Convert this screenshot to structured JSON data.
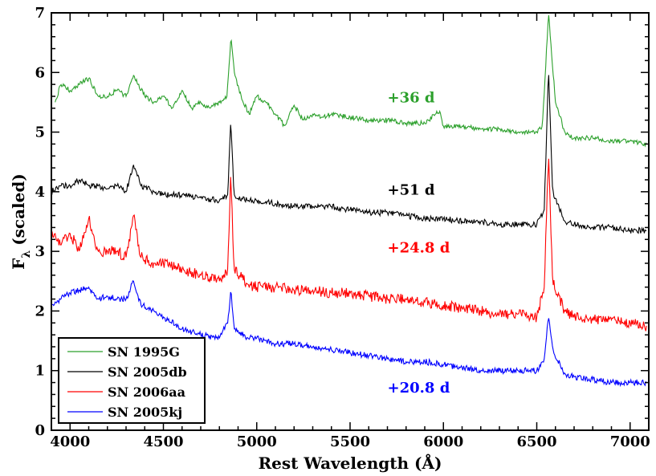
{
  "chart_data": {
    "type": "line",
    "title": "",
    "xlabel": "Rest Wavelength (Å)",
    "ylabel_main": "F",
    "ylabel_sub": "λ",
    "ylabel_suffix": "(scaled)",
    "xlim": [
      3900,
      7100
    ],
    "ylim": [
      0,
      7
    ],
    "xticks": [
      4000,
      4500,
      5000,
      5500,
      6000,
      6500,
      7000
    ],
    "yticks": [
      0,
      1,
      2,
      3,
      4,
      5,
      6,
      7
    ],
    "legend_position": "bottom-left",
    "series": [
      {
        "name": "SN 1995G",
        "color": "#2ca02c",
        "annotation": "+36 d",
        "annotation_x": 5700,
        "annotation_y": 5.5,
        "points": [
          [
            3920,
            5.5
          ],
          [
            3950,
            5.8
          ],
          [
            4000,
            5.7
          ],
          [
            4050,
            5.8
          ],
          [
            4100,
            5.9
          ],
          [
            4150,
            5.6
          ],
          [
            4200,
            5.6
          ],
          [
            4250,
            5.7
          ],
          [
            4300,
            5.6
          ],
          [
            4340,
            5.95
          ],
          [
            4400,
            5.6
          ],
          [
            4450,
            5.5
          ],
          [
            4500,
            5.6
          ],
          [
            4550,
            5.4
          ],
          [
            4600,
            5.7
          ],
          [
            4650,
            5.4
          ],
          [
            4700,
            5.5
          ],
          [
            4750,
            5.4
          ],
          [
            4800,
            5.5
          ],
          [
            4840,
            5.6
          ],
          [
            4862,
            6.6
          ],
          [
            4880,
            6.0
          ],
          [
            4920,
            5.55
          ],
          [
            4960,
            5.3
          ],
          [
            5000,
            5.6
          ],
          [
            5050,
            5.5
          ],
          [
            5100,
            5.3
          ],
          [
            5150,
            5.1
          ],
          [
            5200,
            5.45
          ],
          [
            5250,
            5.2
          ],
          [
            5300,
            5.3
          ],
          [
            5350,
            5.25
          ],
          [
            5400,
            5.3
          ],
          [
            5500,
            5.25
          ],
          [
            5600,
            5.2
          ],
          [
            5700,
            5.2
          ],
          [
            5800,
            5.15
          ],
          [
            5900,
            5.15
          ],
          [
            5980,
            5.35
          ],
          [
            6000,
            5.1
          ],
          [
            6100,
            5.1
          ],
          [
            6200,
            5.05
          ],
          [
            6300,
            5.05
          ],
          [
            6400,
            5.0
          ],
          [
            6500,
            5.0
          ],
          [
            6530,
            5.1
          ],
          [
            6563,
            7.0
          ],
          [
            6600,
            5.5
          ],
          [
            6650,
            5.0
          ],
          [
            6700,
            4.9
          ],
          [
            6800,
            4.9
          ],
          [
            6900,
            4.85
          ],
          [
            7000,
            4.85
          ],
          [
            7090,
            4.8
          ]
        ]
      },
      {
        "name": "SN 2005db",
        "color": "#000000",
        "annotation": "+51 d",
        "annotation_x": 5700,
        "annotation_y": 3.95,
        "points": [
          [
            3900,
            4.0
          ],
          [
            3950,
            4.1
          ],
          [
            4000,
            4.1
          ],
          [
            4050,
            4.2
          ],
          [
            4100,
            4.1
          ],
          [
            4150,
            4.1
          ],
          [
            4200,
            4.05
          ],
          [
            4250,
            4.1
          ],
          [
            4300,
            4.0
          ],
          [
            4340,
            4.45
          ],
          [
            4380,
            4.1
          ],
          [
            4450,
            4.0
          ],
          [
            4500,
            3.95
          ],
          [
            4600,
            3.95
          ],
          [
            4700,
            3.9
          ],
          [
            4800,
            3.85
          ],
          [
            4845,
            3.95
          ],
          [
            4861,
            5.2
          ],
          [
            4878,
            3.95
          ],
          [
            4950,
            3.85
          ],
          [
            5000,
            3.85
          ],
          [
            5100,
            3.8
          ],
          [
            5200,
            3.75
          ],
          [
            5300,
            3.75
          ],
          [
            5400,
            3.75
          ],
          [
            5500,
            3.7
          ],
          [
            5600,
            3.65
          ],
          [
            5700,
            3.65
          ],
          [
            5800,
            3.6
          ],
          [
            5900,
            3.55
          ],
          [
            6000,
            3.55
          ],
          [
            6100,
            3.5
          ],
          [
            6200,
            3.5
          ],
          [
            6300,
            3.45
          ],
          [
            6400,
            3.45
          ],
          [
            6500,
            3.45
          ],
          [
            6540,
            3.7
          ],
          [
            6563,
            6.05
          ],
          [
            6585,
            4.0
          ],
          [
            6650,
            3.5
          ],
          [
            6700,
            3.45
          ],
          [
            6800,
            3.4
          ],
          [
            6900,
            3.4
          ],
          [
            7000,
            3.35
          ],
          [
            7090,
            3.35
          ]
        ]
      },
      {
        "name": "SN 2006aa",
        "color": "#ff0000",
        "annotation": "+24.8 d",
        "annotation_x": 5700,
        "annotation_y": 2.98,
        "points": [
          [
            3900,
            3.3
          ],
          [
            3950,
            3.1
          ],
          [
            4000,
            3.3
          ],
          [
            4050,
            3.0
          ],
          [
            4100,
            3.55
          ],
          [
            4150,
            3.0
          ],
          [
            4200,
            3.0
          ],
          [
            4250,
            3.0
          ],
          [
            4300,
            2.9
          ],
          [
            4340,
            3.6
          ],
          [
            4380,
            2.9
          ],
          [
            4450,
            2.8
          ],
          [
            4500,
            2.8
          ],
          [
            4600,
            2.7
          ],
          [
            4700,
            2.6
          ],
          [
            4800,
            2.5
          ],
          [
            4845,
            2.7
          ],
          [
            4861,
            4.35
          ],
          [
            4878,
            2.7
          ],
          [
            4950,
            2.45
          ],
          [
            5000,
            2.4
          ],
          [
            5100,
            2.4
          ],
          [
            5200,
            2.35
          ],
          [
            5300,
            2.35
          ],
          [
            5400,
            2.3
          ],
          [
            5500,
            2.3
          ],
          [
            5600,
            2.25
          ],
          [
            5700,
            2.2
          ],
          [
            5800,
            2.2
          ],
          [
            5900,
            2.15
          ],
          [
            6000,
            2.1
          ],
          [
            6100,
            2.05
          ],
          [
            6200,
            2.0
          ],
          [
            6300,
            1.95
          ],
          [
            6400,
            1.95
          ],
          [
            6500,
            1.9
          ],
          [
            6540,
            2.4
          ],
          [
            6563,
            4.65
          ],
          [
            6585,
            2.5
          ],
          [
            6650,
            2.0
          ],
          [
            6700,
            1.9
          ],
          [
            6800,
            1.85
          ],
          [
            6900,
            1.85
          ],
          [
            7000,
            1.8
          ],
          [
            7090,
            1.75
          ]
        ]
      },
      {
        "name": "SN 2005kj",
        "color": "#0000ff",
        "annotation": "+20.8 d",
        "annotation_x": 5700,
        "annotation_y": 0.63,
        "points": [
          [
            3900,
            2.1
          ],
          [
            3950,
            2.2
          ],
          [
            4000,
            2.3
          ],
          [
            4050,
            2.35
          ],
          [
            4100,
            2.4
          ],
          [
            4150,
            2.2
          ],
          [
            4200,
            2.25
          ],
          [
            4250,
            2.2
          ],
          [
            4300,
            2.2
          ],
          [
            4340,
            2.5
          ],
          [
            4380,
            2.1
          ],
          [
            4450,
            2.0
          ],
          [
            4500,
            1.9
          ],
          [
            4600,
            1.7
          ],
          [
            4700,
            1.6
          ],
          [
            4800,
            1.55
          ],
          [
            4845,
            1.8
          ],
          [
            4861,
            2.35
          ],
          [
            4880,
            1.7
          ],
          [
            4950,
            1.55
          ],
          [
            5000,
            1.55
          ],
          [
            5100,
            1.45
          ],
          [
            5200,
            1.45
          ],
          [
            5300,
            1.4
          ],
          [
            5400,
            1.35
          ],
          [
            5500,
            1.3
          ],
          [
            5600,
            1.25
          ],
          [
            5700,
            1.2
          ],
          [
            5800,
            1.15
          ],
          [
            5900,
            1.15
          ],
          [
            6000,
            1.1
          ],
          [
            6100,
            1.05
          ],
          [
            6200,
            1.0
          ],
          [
            6300,
            1.0
          ],
          [
            6400,
            1.0
          ],
          [
            6500,
            1.0
          ],
          [
            6540,
            1.2
          ],
          [
            6563,
            1.9
          ],
          [
            6590,
            1.3
          ],
          [
            6650,
            0.95
          ],
          [
            6700,
            0.9
          ],
          [
            6800,
            0.85
          ],
          [
            6900,
            0.8
          ],
          [
            7000,
            0.8
          ],
          [
            7090,
            0.8
          ]
        ]
      }
    ]
  }
}
